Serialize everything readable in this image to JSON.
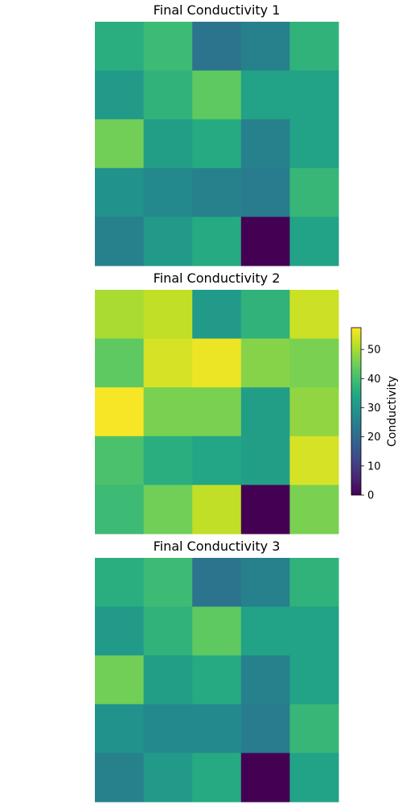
{
  "colormap": "viridis",
  "chart_data": [
    {
      "type": "heatmap",
      "title": "Final Conductivity 1",
      "rows": 5,
      "cols": 5,
      "values": [
        [
          36,
          39,
          22,
          25,
          37
        ],
        [
          31,
          37,
          43,
          33,
          33
        ],
        [
          45,
          32,
          35,
          25,
          33
        ],
        [
          29,
          27,
          25,
          24,
          38
        ],
        [
          25,
          31,
          35,
          0,
          33
        ]
      ]
    },
    {
      "type": "heatmap",
      "title": "Final Conductivity 2",
      "rows": 5,
      "cols": 5,
      "values": [
        [
          50,
          52,
          31,
          37,
          53
        ],
        [
          43,
          54,
          56,
          47,
          46
        ],
        [
          57,
          46,
          46,
          32,
          48
        ],
        [
          41,
          36,
          34,
          32,
          54
        ],
        [
          39,
          45,
          52,
          0,
          46
        ]
      ]
    },
    {
      "type": "heatmap",
      "title": "Final Conductivity 3",
      "rows": 5,
      "cols": 5,
      "values": [
        [
          36,
          39,
          22,
          25,
          37
        ],
        [
          31,
          37,
          43,
          33,
          33
        ],
        [
          45,
          32,
          35,
          25,
          33
        ],
        [
          29,
          27,
          27,
          24,
          38
        ],
        [
          25,
          31,
          35,
          0,
          33
        ]
      ]
    }
  ],
  "colorbar": {
    "label": "Conductivity",
    "min": 0,
    "max": 57.5,
    "ticks": [
      0,
      10,
      20,
      30,
      40,
      50
    ]
  }
}
